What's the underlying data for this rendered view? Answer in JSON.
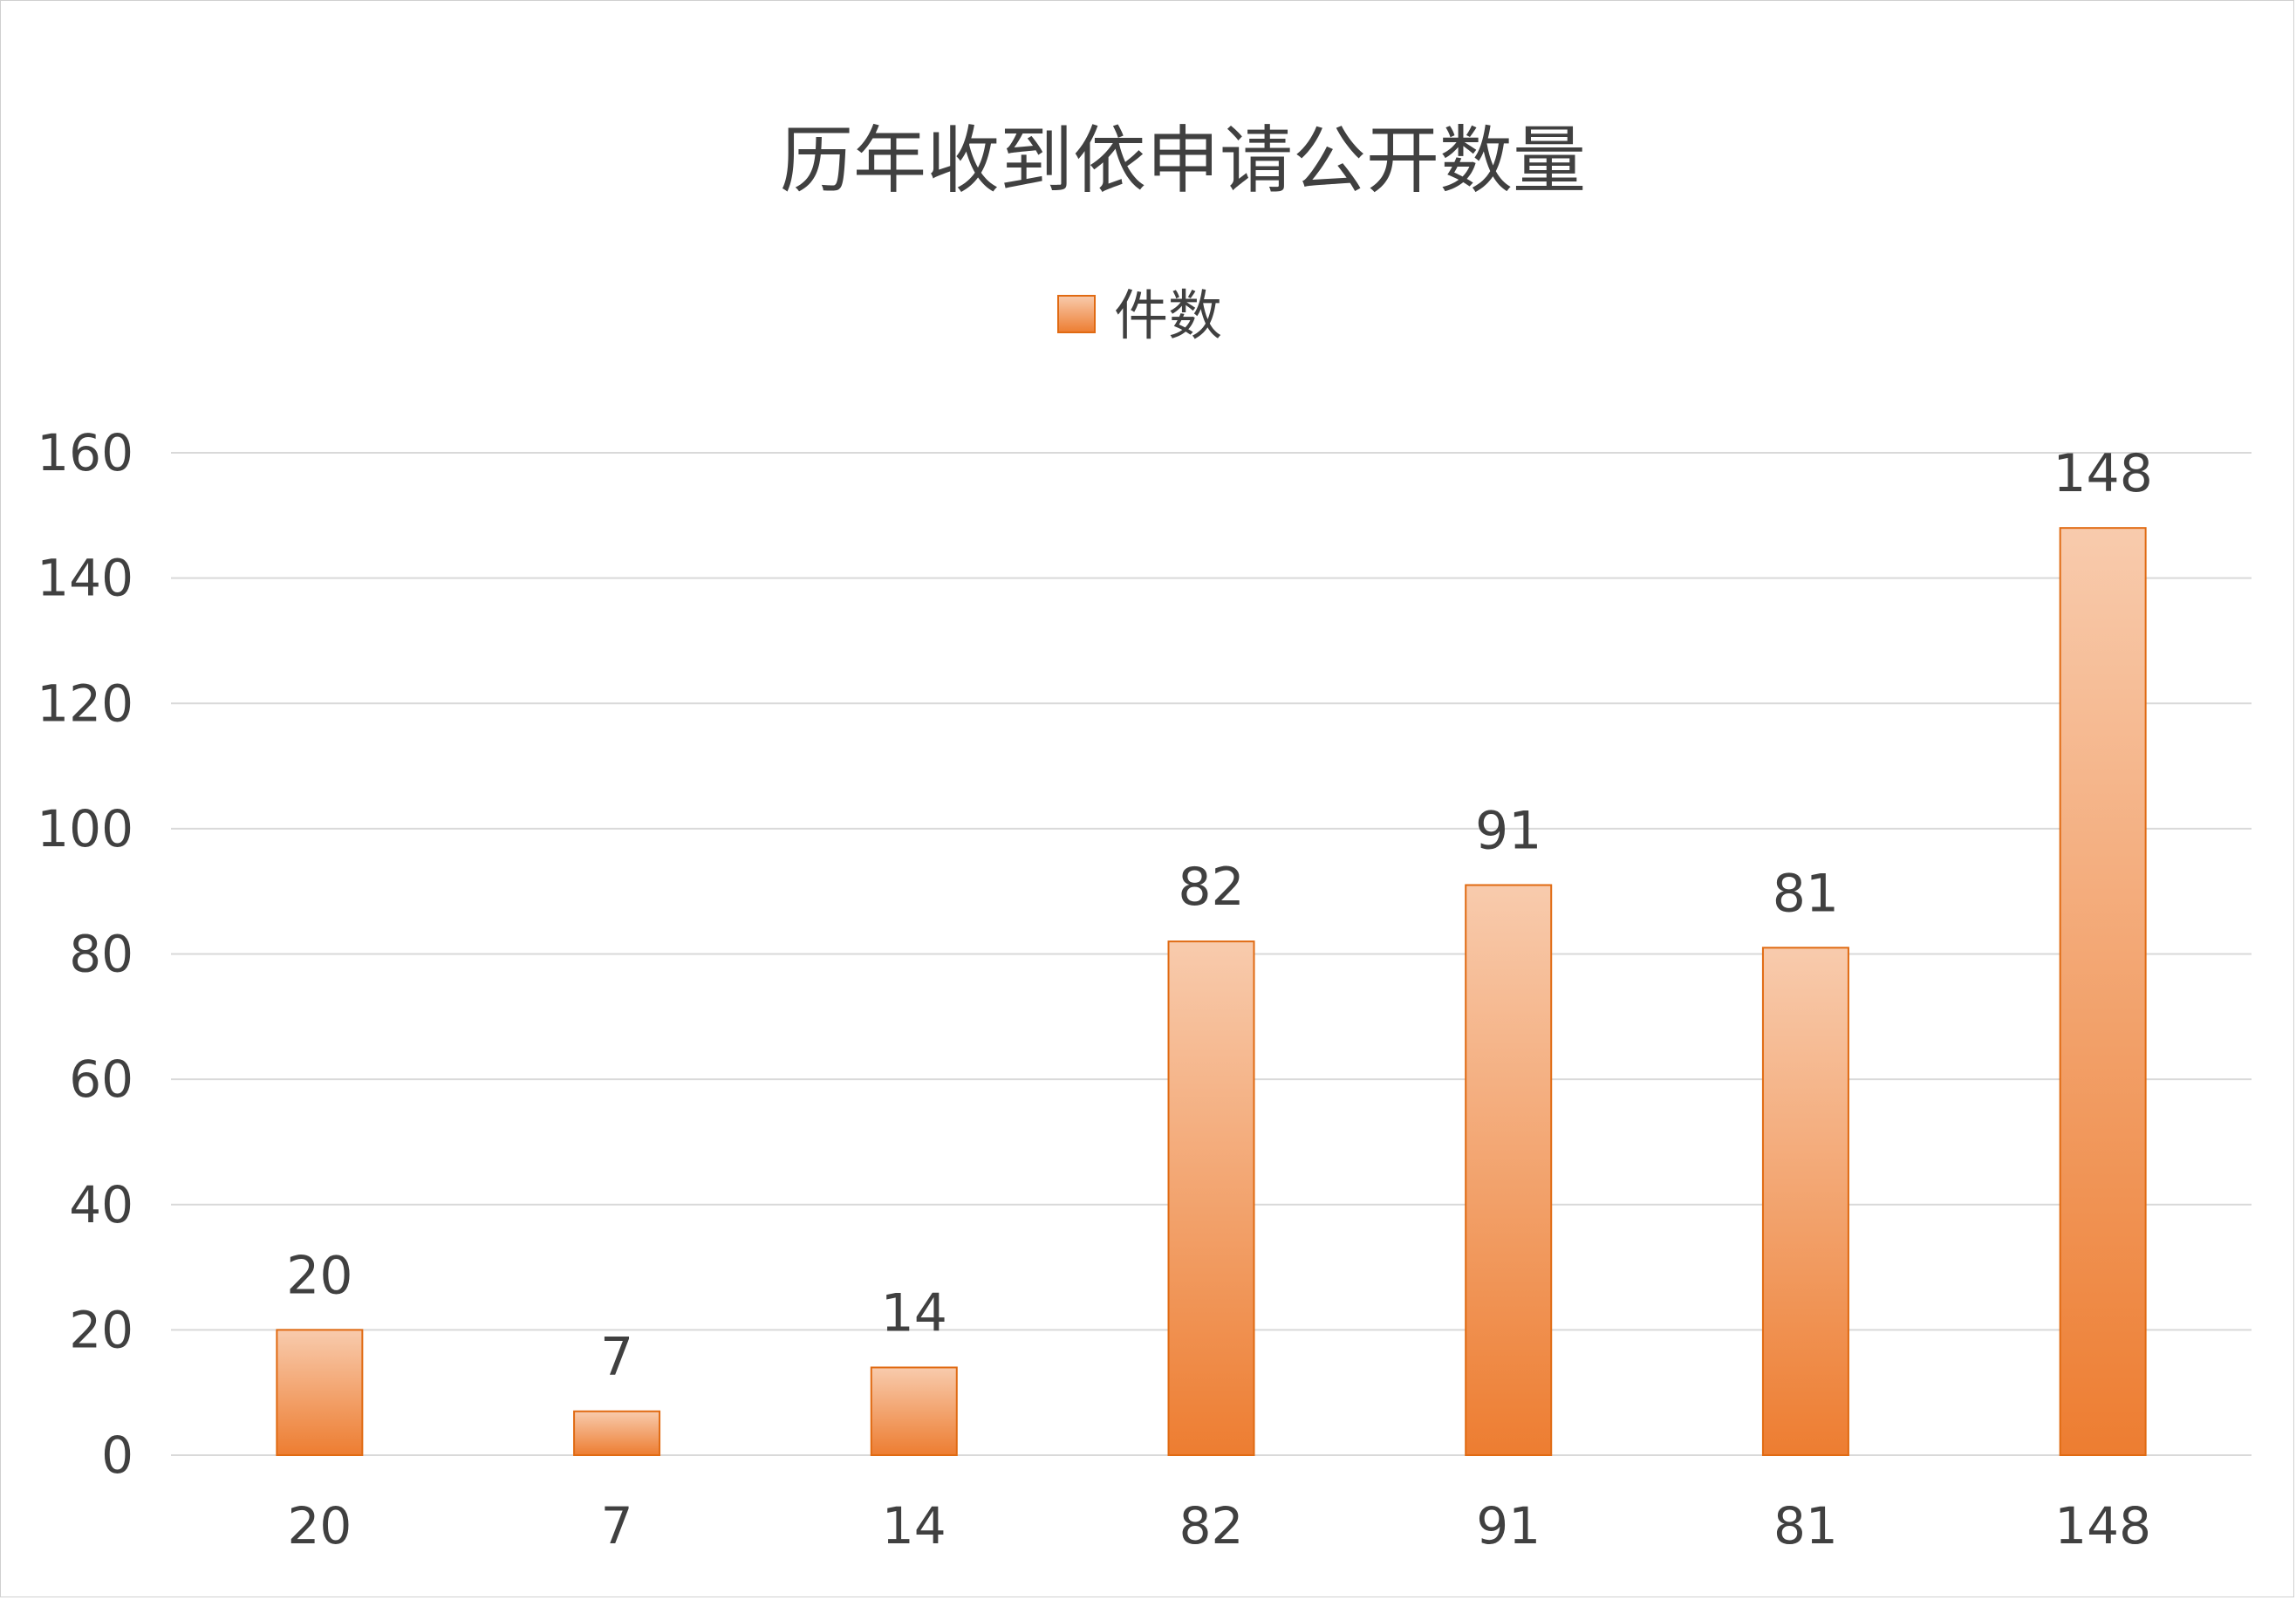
{
  "chart_data": {
    "type": "bar",
    "title": "历年收到依申请公开数量",
    "categories": [
      "20",
      "7",
      "14",
      "82",
      "91",
      "81",
      "148"
    ],
    "series": [
      {
        "name": "件数",
        "values": [
          20,
          7,
          14,
          82,
          91,
          81,
          148
        ]
      }
    ],
    "data_labels": [
      "20",
      "7",
      "14",
      "82",
      "91",
      "81",
      "148"
    ],
    "yticks": [
      "0",
      "20",
      "40",
      "60",
      "80",
      "100",
      "120",
      "140",
      "160"
    ],
    "ylim": [
      0,
      160
    ],
    "xlabel": "",
    "ylabel": "",
    "grid": true,
    "legend_position": "top",
    "colors": {
      "bar_top": "#F8CBAD",
      "bar_bottom": "#ED7D31",
      "bar_edge": "#E06A12",
      "grid": "#D9D9D9",
      "text": "#404040"
    }
  }
}
